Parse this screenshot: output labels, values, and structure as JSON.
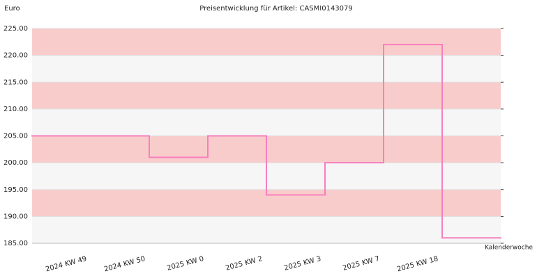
{
  "chart_data": {
    "type": "step",
    "title": "Preisentwicklung für Artikel: CASMI0143079",
    "y_label": "Euro",
    "x_label": "Kalenderwoche",
    "categories": [
      null,
      "2024 KW 49",
      "2024 KW 50",
      "2025 KW 0",
      "2025 KW 2",
      "2025 KW 3",
      "2025 KW 7",
      "2025 KW 18"
    ],
    "values": [
      205,
      205,
      201,
      205,
      194,
      200,
      222,
      186
    ],
    "color": "#f77fbe",
    "band_colors": [
      "#f9cccc",
      "#f6f6f6"
    ],
    "ylim": [
      185,
      225
    ],
    "yticks": [
      {
        "value": 185,
        "label": "185.00"
      },
      {
        "value": 190,
        "label": "190.00"
      },
      {
        "value": 195,
        "label": "195.00"
      },
      {
        "value": 200,
        "label": "200.00"
      },
      {
        "value": 205,
        "label": "205.00"
      },
      {
        "value": 210,
        "label": "210.00"
      },
      {
        "value": 215,
        "label": "215.00"
      },
      {
        "value": 220,
        "label": "220.00"
      },
      {
        "value": 225,
        "label": "225.00"
      }
    ]
  }
}
